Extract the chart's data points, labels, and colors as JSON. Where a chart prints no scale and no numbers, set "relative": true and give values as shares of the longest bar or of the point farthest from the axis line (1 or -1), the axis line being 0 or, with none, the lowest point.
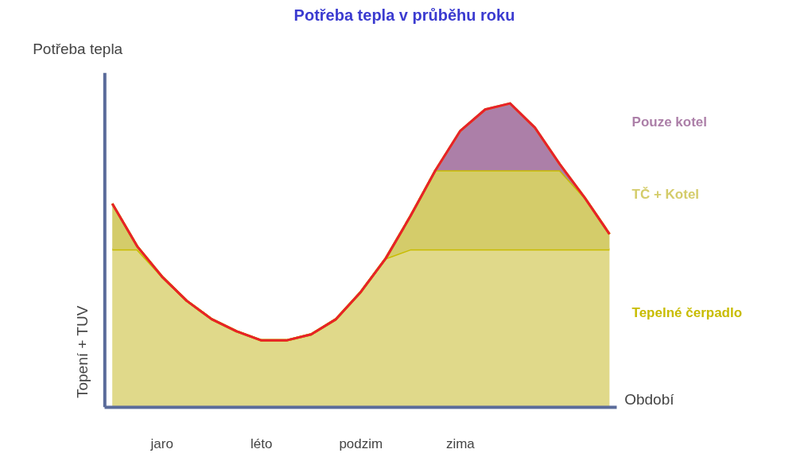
{
  "chart_data": {
    "type": "area",
    "title": "Potřeba tepla v průběhu roku",
    "xlabel": "Období",
    "ylabel": "Topení + TUV",
    "annotations": [
      "Potřeba tepla"
    ],
    "relative": true,
    "stacked": true,
    "legend": false,
    "grid": false,
    "categories": [
      null,
      null,
      "jaro",
      null,
      null,
      null,
      "léto",
      null,
      null,
      null,
      "podzim",
      null,
      null,
      null,
      "zima",
      null,
      null,
      null,
      null,
      null,
      null
    ],
    "series": [
      {
        "name": "Tepelné čerpadlo",
        "color": "#e0d98a",
        "values": [
          0.52,
          0.52,
          0.43,
          0.35,
          0.29,
          0.25,
          0.22,
          0.22,
          0.24,
          0.29,
          0.38,
          0.49,
          0.52,
          0.52,
          0.52,
          0.52,
          0.52,
          0.52,
          0.52,
          0.52,
          0.52
        ]
      },
      {
        "name": "TČ + Kotel",
        "color": "#d4cc6a",
        "values": [
          0.15,
          0.01,
          0,
          0,
          0,
          0,
          0,
          0,
          0,
          0,
          0,
          0,
          0.11,
          0.26,
          0.26,
          0.26,
          0.26,
          0.26,
          0.26,
          0.17,
          0.05
        ]
      },
      {
        "name": "Pouze kotel",
        "color": "#ac7fa8",
        "values": [
          0,
          0,
          0,
          0,
          0,
          0,
          0,
          0,
          0,
          0,
          0,
          0,
          0,
          0,
          0.13,
          0.2,
          0.22,
          0.14,
          0.02,
          0,
          0
        ]
      }
    ]
  }
}
